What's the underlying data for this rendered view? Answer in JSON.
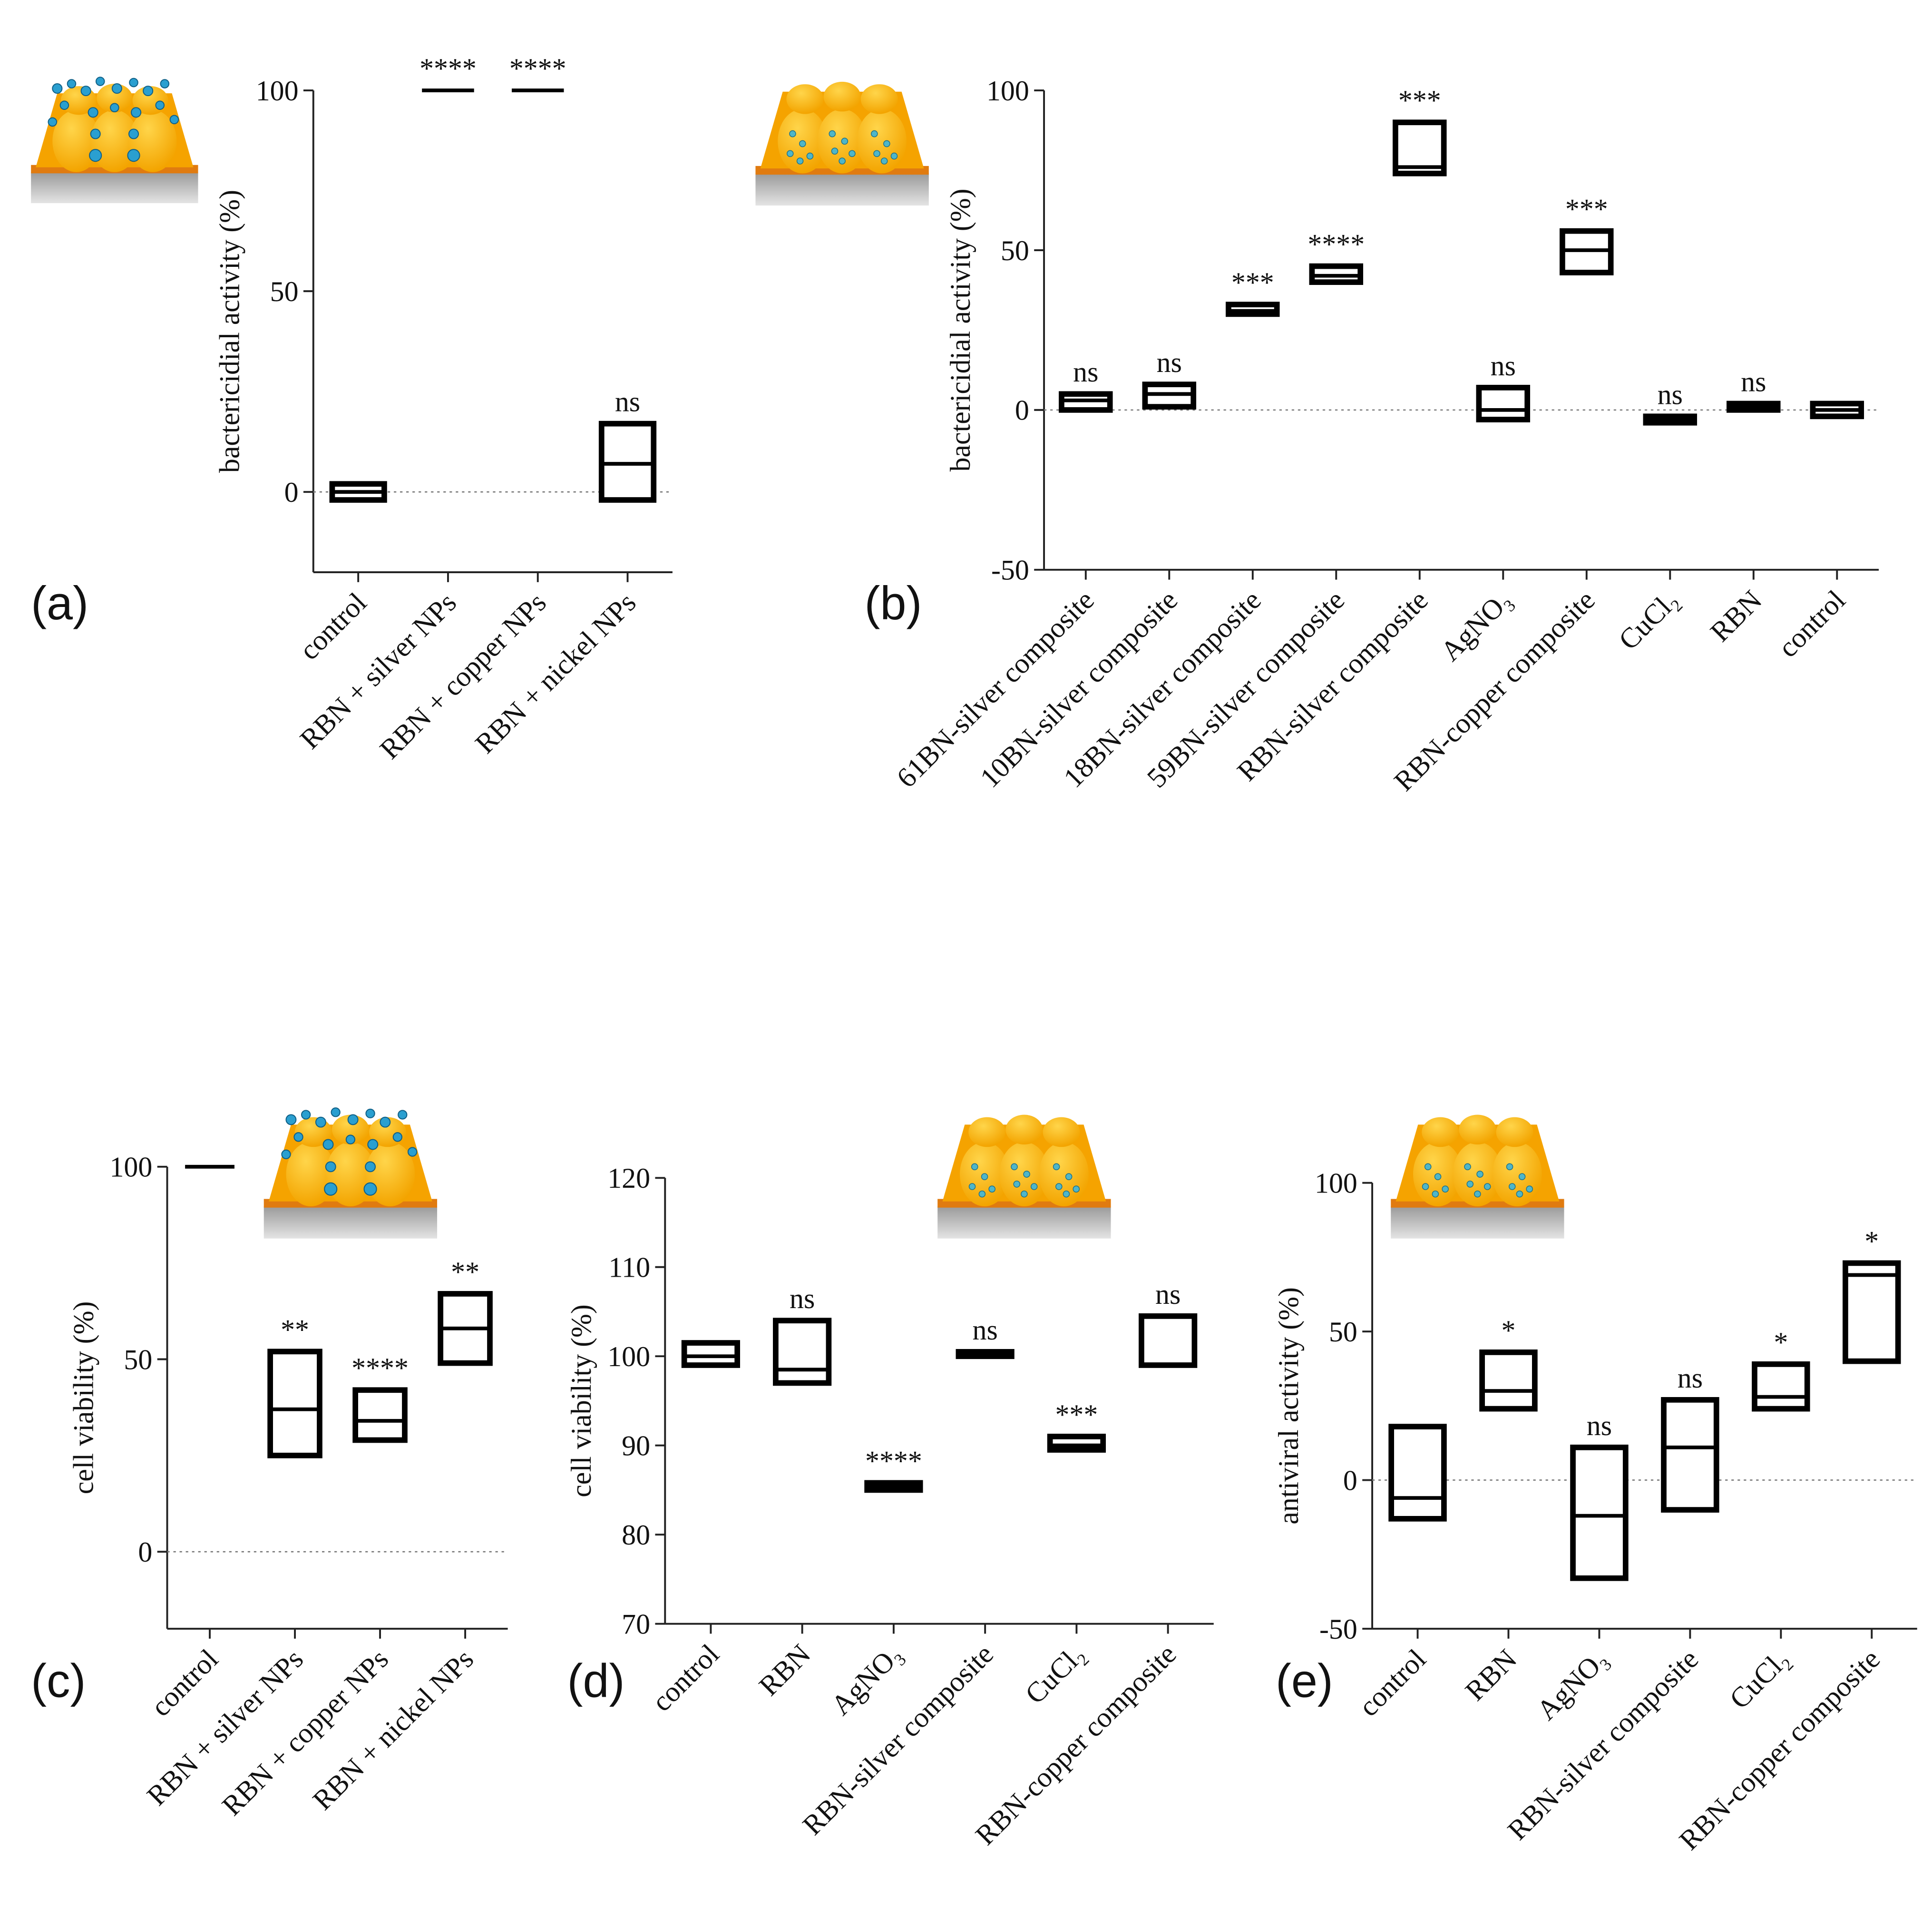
{
  "chart_data": [
    {
      "type": "floating_bar",
      "panel_label": "(a)",
      "y_label": "bactericidial activity (%)",
      "categories": [
        "control",
        "RBN + silver NPs",
        "RBN + copper NPs",
        "RBN + nickel NPs"
      ],
      "low": [
        -2,
        100,
        100,
        -2
      ],
      "high": [
        2,
        100,
        100,
        17
      ],
      "mean": [
        0,
        100,
        100,
        7
      ],
      "significance": [
        null,
        "****",
        "****",
        "ns"
      ],
      "ylim": [
        -20,
        100
      ],
      "yticks": [
        0,
        50,
        100
      ],
      "reference_line": 0
    },
    {
      "type": "floating_bar",
      "panel_label": "(b)",
      "y_label": "bactericidial activity (%)",
      "categories": [
        "61BN-silver composite",
        "10BN-silver composite",
        "18BN-silver composite",
        "59BN-silver composite",
        "RBN-silver composite",
        "AgNO₃",
        "RBN-copper composite",
        "CuCl₂",
        "RBN",
        "control"
      ],
      "low": [
        0,
        1,
        30,
        40,
        74,
        -3,
        43,
        -4,
        0,
        -2
      ],
      "high": [
        5,
        8,
        33,
        45,
        90,
        7,
        56,
        -2,
        2,
        2
      ],
      "mean": [
        3,
        5,
        31,
        42,
        76,
        0,
        50,
        -3,
        1,
        0
      ],
      "significance": [
        "ns",
        "ns",
        "***",
        "****",
        "***",
        "ns",
        "***",
        "ns",
        "ns",
        null
      ],
      "ylim": [
        -50,
        100
      ],
      "yticks": [
        -50,
        0,
        50,
        100
      ],
      "reference_line": 0
    },
    {
      "type": "floating_bar",
      "panel_label": "(c)",
      "y_label": "cell viability (%)",
      "categories": [
        "control",
        "RBN + silver NPs",
        "RBN + copper NPs",
        "RBN + nickel NPs"
      ],
      "low": [
        100,
        25,
        29,
        49
      ],
      "high": [
        100,
        52,
        42,
        67
      ],
      "mean": [
        100,
        37,
        34,
        58
      ],
      "significance": [
        null,
        "**",
        "****",
        "**"
      ],
      "ylim": [
        -20,
        100
      ],
      "yticks": [
        0,
        50,
        100
      ],
      "reference_line": 0
    },
    {
      "type": "floating_bar",
      "panel_label": "(d)",
      "y_label": "cell viability (%)",
      "categories": [
        "control",
        "RBN",
        "AgNO₃",
        "RBN-silver composite",
        "CuCl₂",
        "RBN-copper composite"
      ],
      "low": [
        99,
        97,
        85,
        100,
        89.5,
        99
      ],
      "high": [
        101.5,
        104,
        85.8,
        100.5,
        91,
        104.5
      ],
      "mean": [
        100,
        98.5,
        85.4,
        100.2,
        90,
        99
      ],
      "significance": [
        null,
        "ns",
        "****",
        "ns",
        "***",
        "ns"
      ],
      "ylim": [
        70,
        120
      ],
      "yticks": [
        70,
        80,
        90,
        100,
        110,
        120
      ]
    },
    {
      "type": "floating_bar",
      "panel_label": "(e)",
      "y_label": "antiviral activity (%)",
      "categories": [
        "control",
        "RBN",
        "AgNO₃",
        "RBN-silver composite",
        "CuCl₂",
        "RBN-copper composite"
      ],
      "low": [
        -13,
        24,
        -33,
        -10,
        24,
        40
      ],
      "high": [
        18,
        43,
        11,
        27,
        39,
        73
      ],
      "mean": [
        -6,
        30,
        -12,
        11,
        28,
        69
      ],
      "significance": [
        null,
        "*",
        "ns",
        "ns",
        "*",
        "*"
      ],
      "ylim": [
        -50,
        100
      ],
      "yticks": [
        -50,
        0,
        50,
        100
      ],
      "reference_line": 0
    }
  ]
}
